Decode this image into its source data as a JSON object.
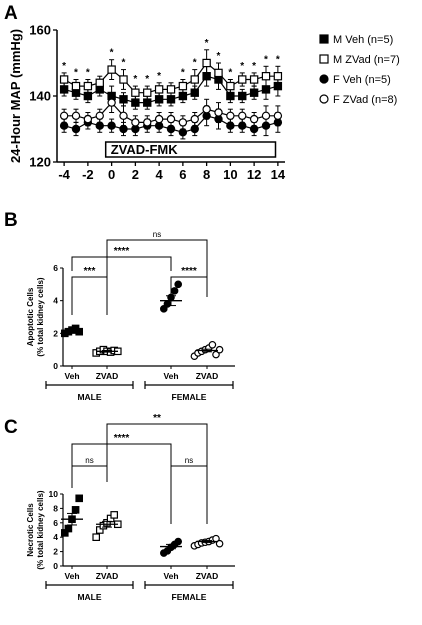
{
  "figure": {
    "panels": [
      "A",
      "B",
      "C"
    ]
  },
  "chart_data": [
    {
      "type": "line",
      "panel": "A",
      "ylabel": "24-Hour MAP (mmHg)",
      "ylim": [
        120,
        160
      ],
      "yticks": [
        120,
        140,
        160
      ],
      "xticks": [
        -4,
        -2,
        0,
        2,
        4,
        6,
        8,
        10,
        12,
        14
      ],
      "xlim": [
        -4.6,
        14.6
      ],
      "treatment_label": "ZVAD-FMK",
      "treatment_range": [
        -0.5,
        13.8
      ],
      "x": [
        -4,
        -3,
        -2,
        -1,
        0,
        1,
        2,
        3,
        4,
        5,
        6,
        7,
        8,
        9,
        10,
        11,
        12,
        13,
        14
      ],
      "series": [
        {
          "name": "M Veh (n=5)",
          "marker": "square-filled",
          "values": [
            142,
            141,
            140,
            142,
            140,
            139,
            138,
            138,
            139,
            139,
            140,
            141,
            146,
            145,
            140,
            140,
            141,
            142,
            143
          ],
          "err": [
            2,
            2,
            2,
            2,
            3,
            2,
            2,
            2,
            2,
            2,
            2,
            2,
            3,
            3,
            2,
            2,
            2,
            3,
            3
          ]
        },
        {
          "name": "M  ZVad (n=7)",
          "marker": "square-open",
          "values": [
            145,
            143,
            143,
            144,
            148,
            145,
            141,
            141,
            142,
            142,
            143,
            145,
            150,
            147,
            143,
            145,
            145,
            146,
            146
          ],
          "err": [
            2,
            2,
            2,
            2,
            3,
            3,
            2,
            2,
            2,
            2,
            2,
            3,
            4,
            3,
            2,
            2,
            2,
            3,
            3
          ]
        },
        {
          "name": "F Veh (n=5)",
          "marker": "circle-filled",
          "values": [
            131,
            130,
            132,
            131,
            131,
            130,
            130,
            131,
            131,
            130,
            129,
            130,
            134,
            133,
            131,
            131,
            130,
            131,
            132
          ],
          "err": [
            2,
            2,
            2,
            2,
            2,
            2,
            2,
            2,
            2,
            2,
            2,
            2,
            3,
            3,
            2,
            2,
            2,
            3,
            3
          ]
        },
        {
          "name": "F ZVad (n=8)",
          "marker": "circle-open",
          "values": [
            134,
            134,
            133,
            134,
            138,
            134,
            132,
            132,
            133,
            133,
            132,
            133,
            136,
            135,
            134,
            134,
            133,
            134,
            134
          ],
          "err": [
            2,
            2,
            2,
            2,
            3,
            3,
            2,
            2,
            2,
            2,
            2,
            2,
            3,
            3,
            2,
            2,
            2,
            3,
            3
          ]
        }
      ],
      "significance": {
        "symbol": "*",
        "x": [
          -4,
          -3,
          -2,
          0,
          1,
          2,
          3,
          4,
          6,
          7,
          8,
          9,
          10,
          11,
          12,
          13,
          14
        ]
      }
    },
    {
      "type": "scatter",
      "panel": "B",
      "ylabel": "Apoptotic Cells",
      "ylabel2": "(% total kidney cells)",
      "ylim": [
        0,
        6
      ],
      "yticks": [
        0,
        2,
        4,
        6
      ],
      "categories": [
        "Veh",
        "ZVAD",
        "Veh",
        "ZVAD"
      ],
      "groups": [
        {
          "label": "MALE",
          "cols": [
            0,
            1
          ]
        },
        {
          "label": "FEMALE",
          "cols": [
            2,
            3
          ]
        }
      ],
      "markers": [
        "square-filled",
        "square-open",
        "circle-filled",
        "circle-open"
      ],
      "points": [
        [
          2.0,
          2.1,
          2.2,
          2.3,
          2.1
        ],
        [
          0.8,
          0.9,
          1.0,
          0.9,
          0.85,
          0.95,
          0.9
        ],
        [
          3.5,
          3.8,
          4.2,
          4.6,
          5.0
        ],
        [
          0.6,
          0.8,
          0.9,
          1.0,
          1.1,
          1.3,
          0.7,
          1.0
        ]
      ],
      "means": [
        2.15,
        0.9,
        4.0,
        0.95
      ],
      "sems": [
        0.1,
        0.05,
        0.3,
        0.08
      ],
      "comparisons": [
        {
          "a": 0,
          "b": 1,
          "label": "***"
        },
        {
          "a": 2,
          "b": 3,
          "label": "****"
        },
        {
          "a": 0,
          "b": 2,
          "label": "****"
        },
        {
          "a": 1,
          "b": 3,
          "label": "ns"
        }
      ]
    },
    {
      "type": "scatter",
      "panel": "C",
      "ylabel": "Necrotic Cells",
      "ylabel2": "(% total kidney cells)",
      "ylim": [
        0,
        10
      ],
      "yticks": [
        0,
        2,
        4,
        6,
        8,
        10
      ],
      "categories": [
        "Veh",
        "ZVAD",
        "Veh",
        "ZVAD"
      ],
      "groups": [
        {
          "label": "MALE",
          "cols": [
            0,
            1
          ]
        },
        {
          "label": "FEMALE",
          "cols": [
            2,
            3
          ]
        }
      ],
      "markers": [
        "square-filled",
        "square-open",
        "circle-filled",
        "circle-open"
      ],
      "points": [
        [
          4.6,
          5.2,
          6.5,
          7.8,
          9.4
        ],
        [
          4.0,
          5.0,
          5.6,
          6.0,
          6.6,
          7.1,
          5.8
        ],
        [
          1.8,
          2.1,
          2.6,
          3.0,
          3.4
        ],
        [
          2.8,
          3.0,
          3.2,
          3.3,
          3.4,
          3.6,
          3.8,
          3.1
        ]
      ],
      "means": [
        6.5,
        5.8,
        2.7,
        3.4
      ],
      "sems": [
        0.8,
        0.4,
        0.3,
        0.15
      ],
      "comparisons": [
        {
          "a": 0,
          "b": 1,
          "label": "ns"
        },
        {
          "a": 2,
          "b": 3,
          "label": "ns"
        },
        {
          "a": 0,
          "b": 2,
          "label": "****"
        },
        {
          "a": 1,
          "b": 3,
          "label": "**"
        }
      ]
    }
  ]
}
